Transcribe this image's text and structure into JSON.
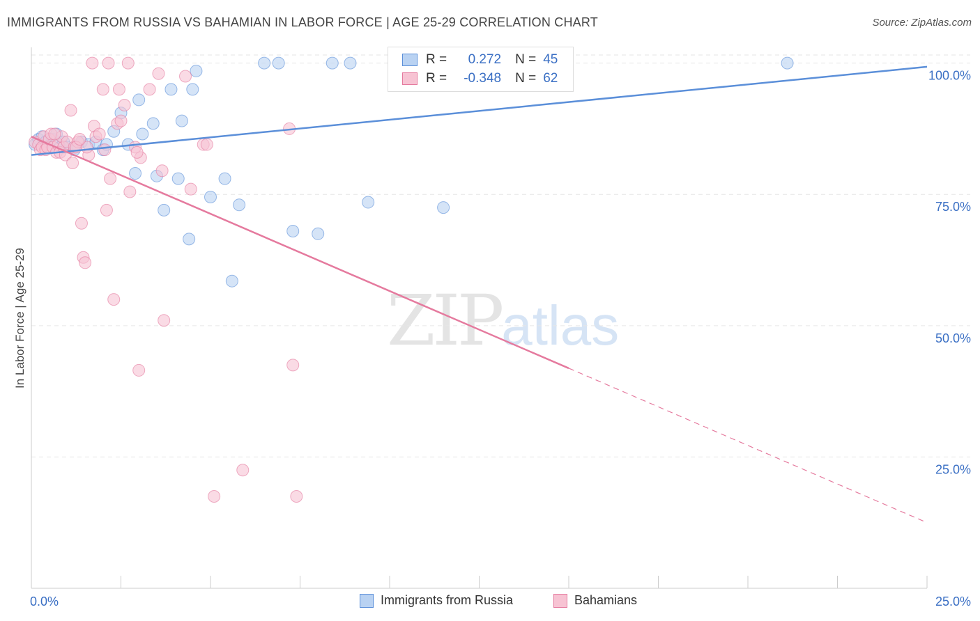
{
  "header": {
    "title": "IMMIGRANTS FROM RUSSIA VS BAHAMIAN IN LABOR FORCE | AGE 25-29 CORRELATION CHART",
    "source": "Source: ZipAtlas.com"
  },
  "legend": {
    "rows": [
      {
        "r_label": "R =",
        "r_value": "0.272",
        "n_label": "N =",
        "n_value": "45",
        "color": "#5b8fd9",
        "fill": "#b9d2f2"
      },
      {
        "r_label": "R =",
        "r_value": "-0.348",
        "n_label": "N =",
        "n_value": "62",
        "color": "#e57a9e",
        "fill": "#f7c3d3"
      }
    ]
  },
  "watermark": {
    "zip": "ZIP",
    "atlas": "atlas"
  },
  "chart_data": {
    "type": "scatter",
    "ylabel": "In Labor Force | Age 25-29",
    "xlim": [
      0,
      25
    ],
    "ylim": [
      0,
      103
    ],
    "x_ticks": [
      {
        "v": 0,
        "label": "0.0%"
      },
      {
        "v": 25,
        "label": "25.0%"
      }
    ],
    "y_ticks": [
      {
        "v": 25,
        "label": "25.0%"
      },
      {
        "v": 50,
        "label": "50.0%"
      },
      {
        "v": 75,
        "label": "75.0%"
      },
      {
        "v": 100,
        "label": "100.0%"
      }
    ],
    "grid": true,
    "series": [
      {
        "name": "Immigrants from Russia",
        "color": "#5b8fd9",
        "fill": "#b9d2f2",
        "trend": {
          "x0": 0,
          "y0": 82.5,
          "x1": 25,
          "y1": 99.3,
          "dash_from": null
        },
        "points": [
          [
            0.1,
            84.5
          ],
          [
            0.2,
            85.5
          ],
          [
            0.3,
            86.0
          ],
          [
            0.4,
            85.0
          ],
          [
            0.5,
            84.0
          ],
          [
            0.6,
            85.5
          ],
          [
            0.7,
            86.5
          ],
          [
            0.8,
            84.0
          ],
          [
            0.9,
            85.0
          ],
          [
            1.0,
            84.0
          ],
          [
            1.2,
            83.5
          ],
          [
            1.4,
            85.0
          ],
          [
            1.6,
            84.5
          ],
          [
            1.8,
            85.0
          ],
          [
            2.0,
            83.5
          ],
          [
            2.1,
            84.5
          ],
          [
            2.3,
            87.0
          ],
          [
            2.5,
            90.5
          ],
          [
            2.7,
            84.5
          ],
          [
            2.9,
            79.0
          ],
          [
            3.0,
            93.0
          ],
          [
            3.1,
            86.5
          ],
          [
            3.4,
            88.5
          ],
          [
            3.5,
            78.5
          ],
          [
            3.7,
            72.0
          ],
          [
            3.9,
            95.0
          ],
          [
            4.1,
            78.0
          ],
          [
            4.2,
            89.0
          ],
          [
            4.4,
            66.5
          ],
          [
            4.5,
            95.0
          ],
          [
            4.6,
            98.5
          ],
          [
            5.0,
            74.5
          ],
          [
            5.4,
            78.0
          ],
          [
            5.6,
            58.5
          ],
          [
            5.8,
            73.0
          ],
          [
            6.5,
            100.0
          ],
          [
            6.9,
            100.0
          ],
          [
            7.3,
            68.0
          ],
          [
            8.0,
            67.5
          ],
          [
            8.4,
            100.0
          ],
          [
            8.9,
            100.0
          ],
          [
            9.4,
            73.5
          ],
          [
            11.5,
            72.5
          ],
          [
            12.6,
            100.0
          ],
          [
            21.1,
            100.0
          ]
        ]
      },
      {
        "name": "Bahamians",
        "color": "#e57a9e",
        "fill": "#f7c3d3",
        "trend": {
          "x0": 0,
          "y0": 86.0,
          "x1": 25,
          "y1": 12.5,
          "dash_from": 15.0
        },
        "points": [
          [
            0.1,
            85.0
          ],
          [
            0.2,
            84.5
          ],
          [
            0.25,
            83.5
          ],
          [
            0.3,
            84.0
          ],
          [
            0.35,
            86.0
          ],
          [
            0.4,
            83.5
          ],
          [
            0.45,
            84.0
          ],
          [
            0.5,
            85.5
          ],
          [
            0.55,
            86.5
          ],
          [
            0.6,
            84.0
          ],
          [
            0.7,
            83.0
          ],
          [
            0.75,
            84.5
          ],
          [
            0.8,
            83.0
          ],
          [
            0.85,
            86.0
          ],
          [
            0.9,
            84.0
          ],
          [
            0.95,
            82.5
          ],
          [
            1.0,
            85.0
          ],
          [
            1.1,
            91.0
          ],
          [
            1.15,
            81.0
          ],
          [
            1.2,
            84.0
          ],
          [
            1.3,
            85.0
          ],
          [
            1.4,
            69.5
          ],
          [
            1.45,
            63.0
          ],
          [
            1.5,
            62.0
          ],
          [
            1.6,
            82.5
          ],
          [
            1.7,
            100.0
          ],
          [
            1.75,
            88.0
          ],
          [
            1.8,
            86.0
          ],
          [
            1.9,
            86.5
          ],
          [
            2.0,
            95.0
          ],
          [
            2.05,
            83.5
          ],
          [
            2.1,
            72.0
          ],
          [
            2.15,
            100.0
          ],
          [
            2.2,
            78.0
          ],
          [
            2.3,
            55.0
          ],
          [
            2.4,
            88.5
          ],
          [
            2.45,
            95.0
          ],
          [
            2.5,
            89.0
          ],
          [
            2.6,
            92.0
          ],
          [
            2.7,
            100.0
          ],
          [
            2.75,
            75.5
          ],
          [
            2.9,
            84.0
          ],
          [
            3.0,
            41.5
          ],
          [
            3.05,
            82.0
          ],
          [
            3.3,
            95.0
          ],
          [
            3.55,
            98.0
          ],
          [
            3.65,
            79.5
          ],
          [
            3.7,
            51.0
          ],
          [
            4.3,
            97.5
          ],
          [
            4.45,
            76.0
          ],
          [
            4.8,
            84.5
          ],
          [
            4.9,
            84.5
          ],
          [
            5.1,
            17.5
          ],
          [
            5.9,
            22.5
          ],
          [
            7.2,
            87.5
          ],
          [
            7.3,
            42.5
          ],
          [
            7.4,
            17.5
          ],
          [
            1.25,
            84.0
          ],
          [
            0.65,
            86.5
          ],
          [
            1.55,
            84.0
          ],
          [
            2.95,
            83.0
          ],
          [
            1.35,
            85.5
          ]
        ]
      }
    ]
  }
}
